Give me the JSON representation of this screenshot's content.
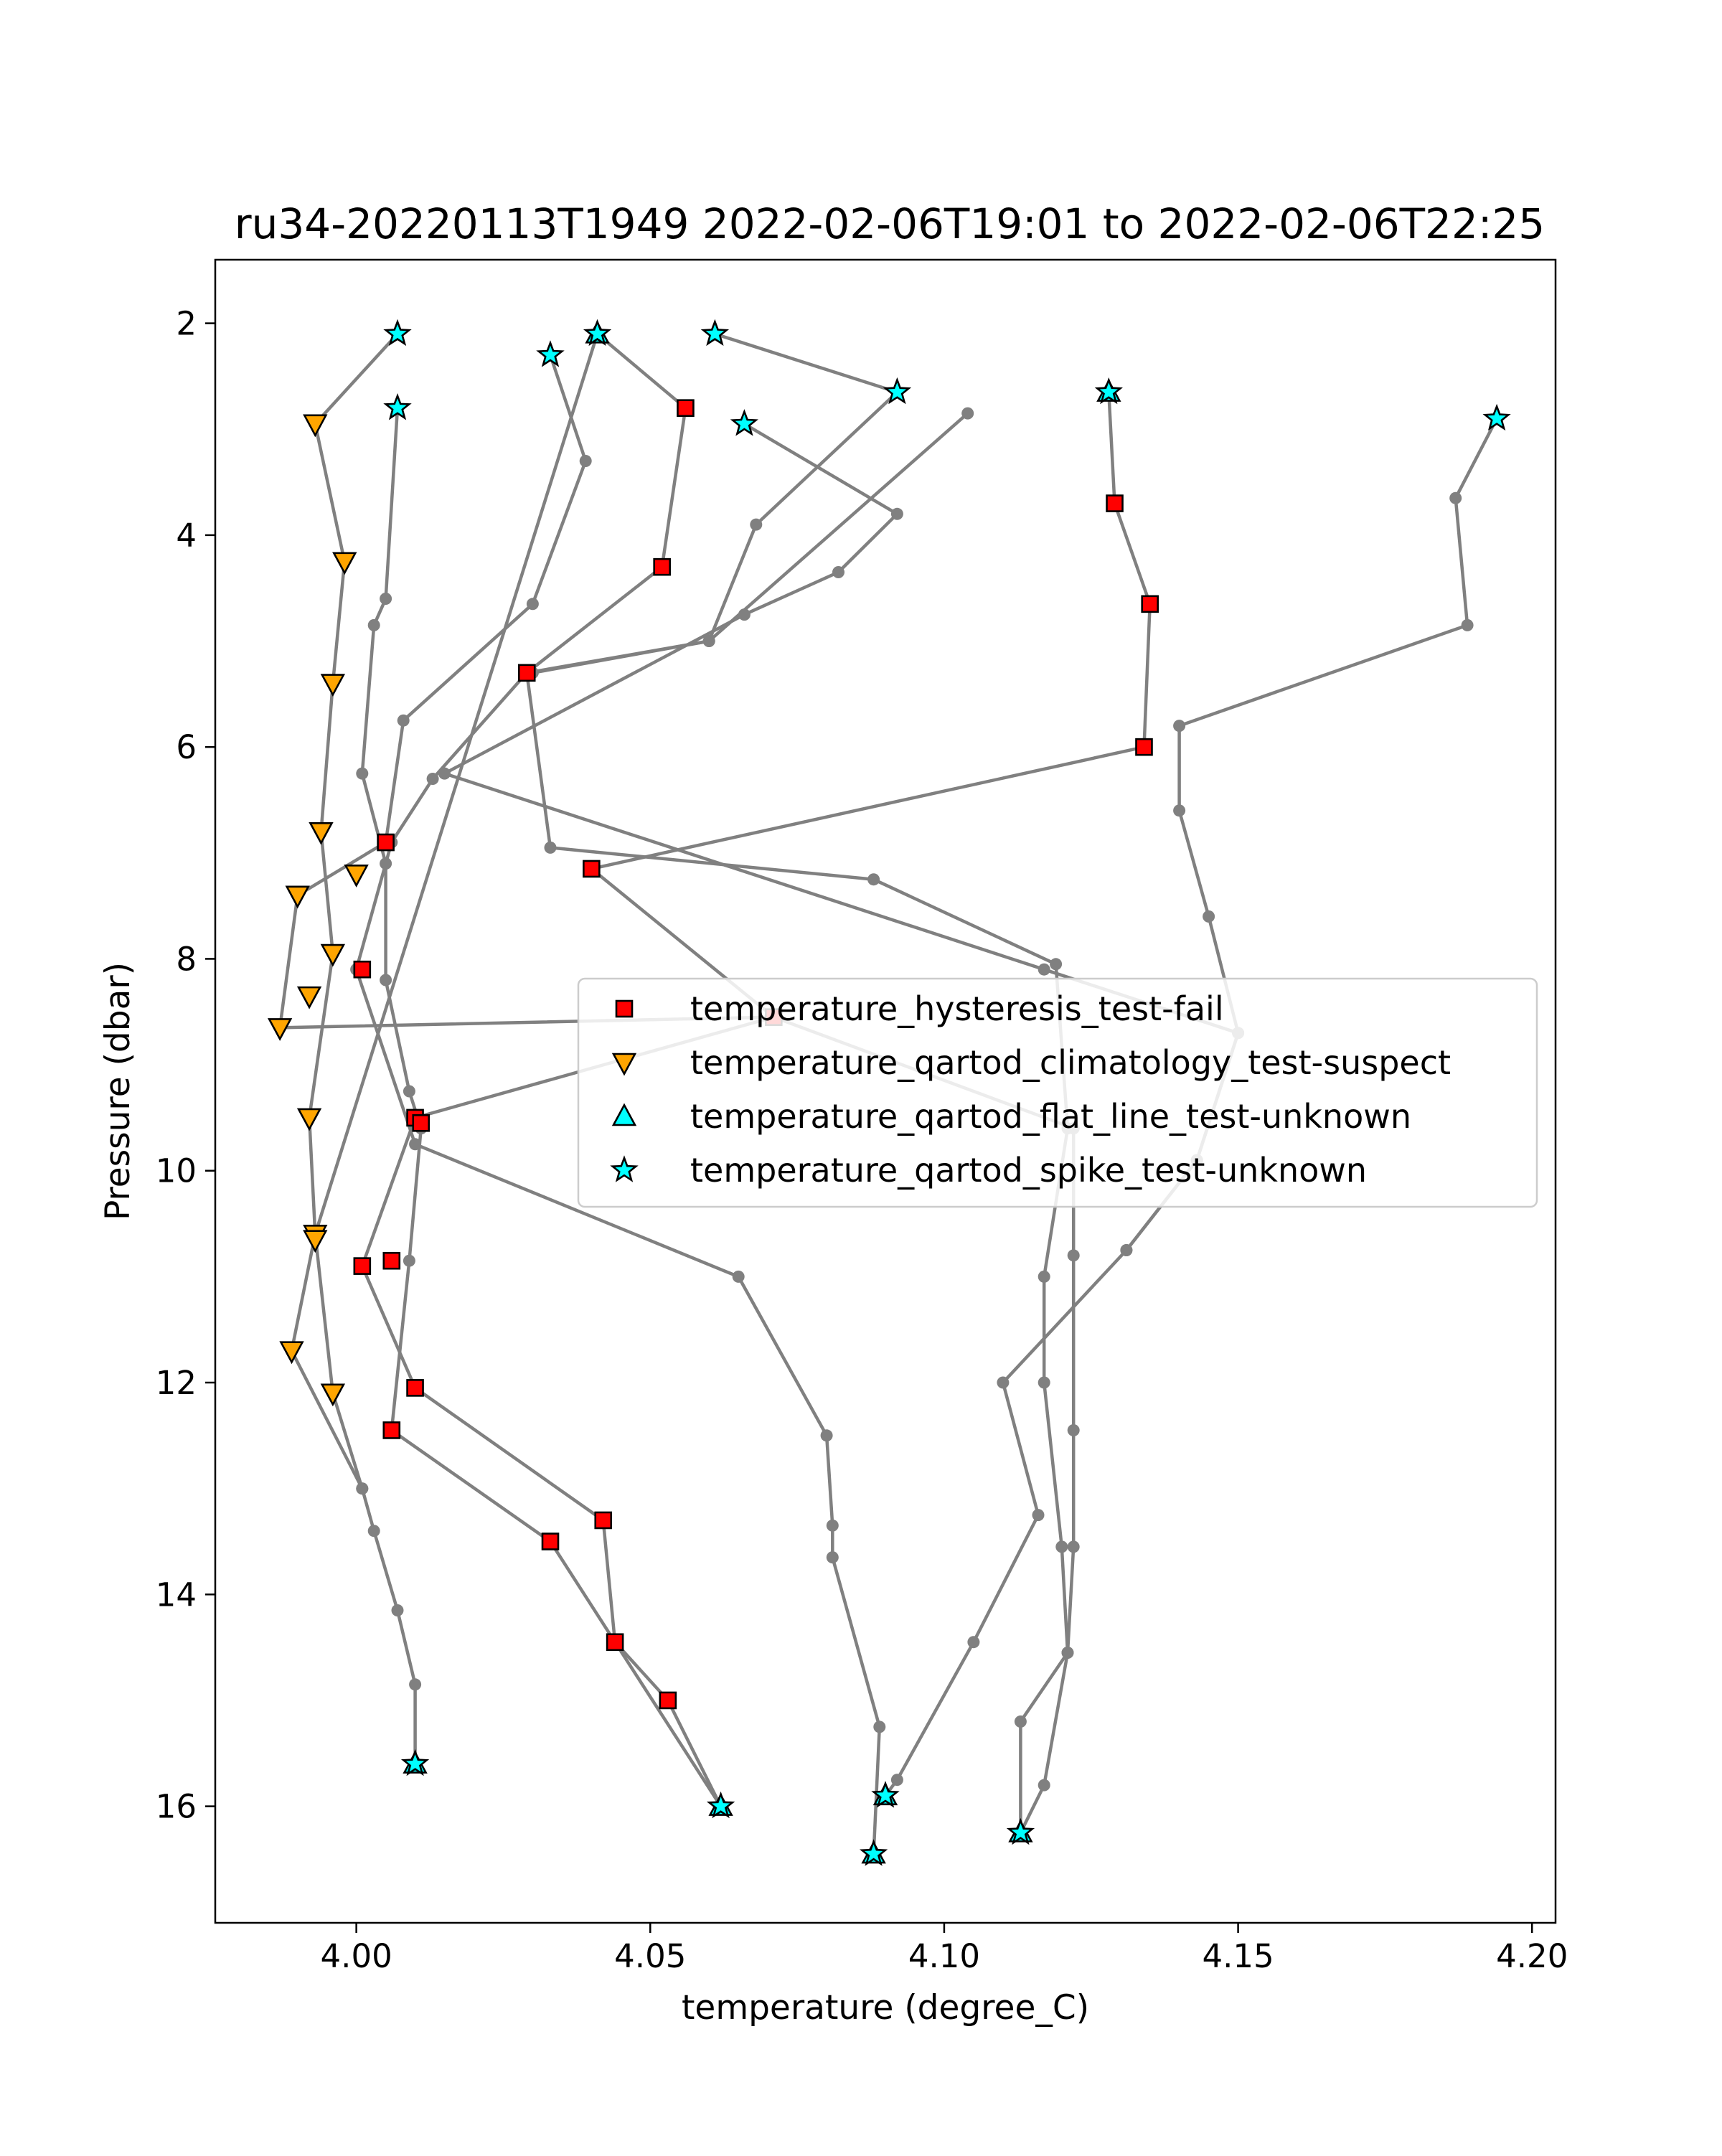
{
  "chart_data": {
    "type": "scatter",
    "title": "ru34-20220113T1949 2022-02-06T19:01 to 2022-02-06T22:25",
    "xlabel": "temperature (degree_C)",
    "ylabel": "Pressure (dbar)",
    "xlim": [
      3.976,
      4.204
    ],
    "ylim": [
      17.1,
      1.4
    ],
    "y_inverted": true,
    "xticks": [
      4.0,
      4.05,
      4.1,
      4.15,
      4.2
    ],
    "xtick_labels": [
      "4.00",
      "4.05",
      "4.10",
      "4.15",
      "4.20"
    ],
    "yticks": [
      2,
      4,
      6,
      8,
      10,
      12,
      14,
      16
    ],
    "ytick_labels": [
      "2",
      "4",
      "6",
      "8",
      "10",
      "12",
      "14",
      "16"
    ],
    "grid": false,
    "legend_position": "center-right",
    "line_color": "#808080",
    "profiles": [
      {
        "points": [
          [
            4.007,
            2.1
          ],
          [
            3.993,
            2.95
          ],
          [
            3.998,
            4.25
          ],
          [
            3.996,
            5.4
          ],
          [
            3.994,
            6.8
          ],
          [
            3.996,
            7.95
          ],
          [
            3.992,
            9.5
          ],
          [
            3.993,
            10.6
          ],
          [
            3.996,
            12.1
          ],
          [
            4.001,
            13.0
          ],
          [
            4.003,
            13.4
          ],
          [
            4.007,
            14.15
          ],
          [
            4.01,
            14.85
          ],
          [
            4.01,
            15.6
          ]
        ]
      },
      {
        "points": [
          [
            4.007,
            2.8
          ],
          [
            4.005,
            4.6
          ],
          [
            4.003,
            4.85
          ],
          [
            4.001,
            6.25
          ],
          [
            4.005,
            7.1
          ],
          [
            4.005,
            8.2
          ],
          [
            4.009,
            9.25
          ],
          [
            4.011,
            9.6
          ],
          [
            4.009,
            10.85
          ],
          [
            4.006,
            12.45
          ],
          [
            4.033,
            13.5
          ],
          [
            4.044,
            14.45
          ],
          [
            4.062,
            16.0
          ]
        ]
      },
      {
        "points": [
          [
            4.033,
            2.3
          ],
          [
            4.039,
            3.3
          ],
          [
            4.03,
            4.65
          ],
          [
            4.008,
            5.75
          ],
          [
            4.005,
            6.9
          ],
          [
            3.99,
            7.4
          ],
          [
            3.987,
            8.65
          ],
          [
            4.071,
            8.55
          ],
          [
            4.01,
            9.5
          ],
          [
            4.001,
            10.9
          ],
          [
            4.01,
            12.05
          ],
          [
            4.042,
            13.3
          ],
          [
            4.044,
            14.45
          ],
          [
            4.053,
            15.0
          ],
          [
            4.062,
            16.0
          ]
        ]
      },
      {
        "points": [
          [
            4.041,
            2.1
          ],
          [
            4.056,
            2.8
          ],
          [
            4.052,
            4.3
          ],
          [
            4.029,
            5.3
          ],
          [
            4.033,
            6.95
          ],
          [
            4.088,
            7.25
          ],
          [
            4.119,
            8.05
          ],
          [
            4.121,
            9.6
          ],
          [
            4.117,
            11.0
          ],
          [
            4.117,
            12.0
          ],
          [
            4.12,
            13.55
          ],
          [
            4.121,
            14.55
          ],
          [
            4.113,
            15.2
          ],
          [
            4.113,
            16.25
          ]
        ]
      },
      {
        "points": [
          [
            4.061,
            2.1
          ],
          [
            4.092,
            2.65
          ],
          [
            4.068,
            3.9
          ],
          [
            4.06,
            5.0
          ],
          [
            4.029,
            5.3
          ],
          [
            4.013,
            6.3
          ],
          [
            4.006,
            6.9
          ],
          [
            4.0,
            8.1
          ],
          [
            4.01,
            9.75
          ],
          [
            4.065,
            11.0
          ],
          [
            4.08,
            12.5
          ],
          [
            4.081,
            13.35
          ],
          [
            4.081,
            13.65
          ],
          [
            4.089,
            15.25
          ],
          [
            4.088,
            16.45
          ]
        ]
      },
      {
        "points": [
          [
            4.066,
            2.95
          ],
          [
            4.092,
            3.8
          ],
          [
            4.082,
            4.35
          ],
          [
            4.066,
            4.75
          ],
          [
            4.015,
            6.25
          ],
          [
            4.117,
            8.1
          ],
          [
            4.15,
            8.7
          ],
          [
            4.143,
            9.9
          ],
          [
            4.131,
            10.75
          ],
          [
            4.11,
            12.0
          ],
          [
            4.116,
            13.25
          ],
          [
            4.105,
            14.45
          ],
          [
            4.092,
            15.75
          ],
          [
            4.09,
            15.9
          ]
        ]
      },
      {
        "points": [
          [
            4.104,
            2.85
          ],
          [
            4.06,
            5.0
          ],
          [
            4.03,
            5.3
          ]
        ]
      },
      {
        "points": [
          [
            4.128,
            2.65
          ],
          [
            4.129,
            3.7
          ],
          [
            4.135,
            4.65
          ],
          [
            4.134,
            6.0
          ],
          [
            4.04,
            7.15
          ],
          [
            4.071,
            8.55
          ],
          [
            4.122,
            9.6
          ],
          [
            4.122,
            10.8
          ],
          [
            4.122,
            12.45
          ],
          [
            4.122,
            13.55
          ],
          [
            4.121,
            14.55
          ],
          [
            4.117,
            15.8
          ],
          [
            4.113,
            16.25
          ]
        ]
      },
      {
        "points": [
          [
            4.194,
            2.9
          ],
          [
            4.187,
            3.65
          ],
          [
            4.189,
            4.85
          ],
          [
            4.14,
            5.8
          ],
          [
            4.14,
            6.6
          ],
          [
            4.145,
            7.6
          ],
          [
            4.15,
            8.7
          ],
          [
            4.143,
            9.9
          ],
          [
            4.131,
            10.75
          ]
        ]
      },
      {
        "points": [
          [
            4.041,
            2.1
          ],
          [
            3.993,
            10.6
          ],
          [
            3.989,
            11.7
          ],
          [
            4.001,
            13.0
          ]
        ]
      }
    ],
    "series": [
      {
        "name": "temperature_hysteresis_test-fail",
        "marker": "square",
        "color": "#ff0000",
        "points": [
          [
            4.056,
            2.8
          ],
          [
            4.129,
            3.7
          ],
          [
            4.052,
            4.3
          ],
          [
            4.135,
            4.65
          ],
          [
            4.029,
            5.3
          ],
          [
            4.134,
            6.0
          ],
          [
            4.005,
            6.9
          ],
          [
            4.04,
            7.15
          ],
          [
            4.001,
            8.1
          ],
          [
            4.071,
            8.55
          ],
          [
            4.01,
            9.5
          ],
          [
            4.011,
            9.55
          ],
          [
            4.001,
            10.9
          ],
          [
            4.006,
            10.85
          ],
          [
            4.01,
            12.05
          ],
          [
            4.006,
            12.45
          ],
          [
            4.042,
            13.3
          ],
          [
            4.033,
            13.5
          ],
          [
            4.044,
            14.45
          ],
          [
            4.053,
            15.0
          ]
        ]
      },
      {
        "name": "temperature_qartod_climatology_test-suspect",
        "marker": "triangle-down",
        "color": "#ffa500",
        "points": [
          [
            3.993,
            2.95
          ],
          [
            3.998,
            4.25
          ],
          [
            3.996,
            5.4
          ],
          [
            3.994,
            6.8
          ],
          [
            4.0,
            7.2
          ],
          [
            3.99,
            7.4
          ],
          [
            3.996,
            7.95
          ],
          [
            3.992,
            8.35
          ],
          [
            3.987,
            8.65
          ],
          [
            3.992,
            9.5
          ],
          [
            3.993,
            10.6
          ],
          [
            3.993,
            10.65
          ],
          [
            3.989,
            11.7
          ],
          [
            3.996,
            12.1
          ]
        ]
      },
      {
        "name": "temperature_qartod_flat_line_test-unknown",
        "marker": "triangle-up",
        "color": "#00ffff",
        "points": [
          [
            4.041,
            2.1
          ],
          [
            4.128,
            2.65
          ],
          [
            4.01,
            15.6
          ],
          [
            4.062,
            16.0
          ],
          [
            4.09,
            15.9
          ],
          [
            4.113,
            16.25
          ],
          [
            4.088,
            16.45
          ]
        ]
      },
      {
        "name": "temperature_qartod_spike_test-unknown",
        "marker": "star",
        "color": "#00ffff",
        "points": [
          [
            4.007,
            2.1
          ],
          [
            4.041,
            2.1
          ],
          [
            4.061,
            2.1
          ],
          [
            4.033,
            2.3
          ],
          [
            4.007,
            2.8
          ],
          [
            4.092,
            2.65
          ],
          [
            4.128,
            2.65
          ],
          [
            4.066,
            2.95
          ],
          [
            4.194,
            2.9
          ],
          [
            4.01,
            15.6
          ],
          [
            4.062,
            16.0
          ],
          [
            4.09,
            15.9
          ],
          [
            4.113,
            16.25
          ],
          [
            4.088,
            16.45
          ]
        ]
      }
    ]
  }
}
